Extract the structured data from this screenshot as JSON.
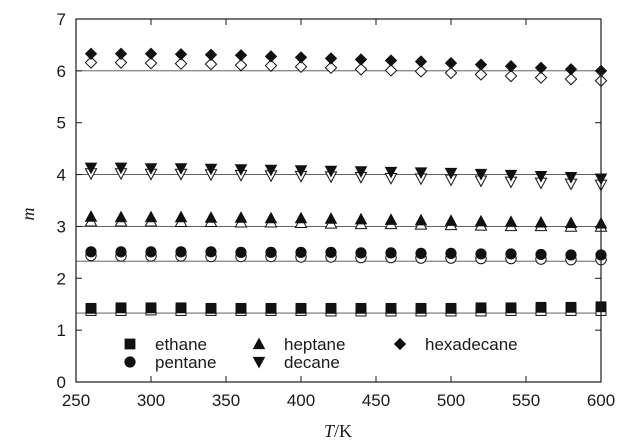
{
  "chart_data": {
    "type": "scatter",
    "xlabel_var": "T",
    "xlabel_unit": "/K",
    "ylabel": "m",
    "xlim": [
      250,
      600
    ],
    "ylim": [
      0,
      7
    ],
    "xticks": [
      "250",
      "300",
      "350",
      "400",
      "450",
      "500",
      "550",
      "600"
    ],
    "yticks": [
      "0",
      "1",
      "2",
      "3",
      "4",
      "5",
      "6",
      "7"
    ],
    "reference_lines": [
      1.33,
      2.33,
      3.0,
      4.0,
      6.0
    ],
    "x": [
      260,
      280,
      300,
      320,
      340,
      360,
      380,
      400,
      420,
      440,
      460,
      480,
      500,
      520,
      540,
      560,
      580,
      600
    ],
    "series": [
      {
        "name": "ethane",
        "marker": "square",
        "values_filled": [
          1.42,
          1.43,
          1.43,
          1.43,
          1.42,
          1.42,
          1.42,
          1.42,
          1.42,
          1.42,
          1.42,
          1.42,
          1.42,
          1.43,
          1.43,
          1.44,
          1.44,
          1.45
        ],
        "values_open": [
          1.38,
          1.38,
          1.39,
          1.38,
          1.38,
          1.38,
          1.38,
          1.38,
          1.37,
          1.37,
          1.37,
          1.37,
          1.37,
          1.37,
          1.38,
          1.38,
          1.38,
          1.38
        ]
      },
      {
        "name": "pentane",
        "marker": "circle",
        "values_filled": [
          2.51,
          2.51,
          2.51,
          2.51,
          2.51,
          2.5,
          2.5,
          2.5,
          2.5,
          2.49,
          2.49,
          2.48,
          2.48,
          2.47,
          2.47,
          2.46,
          2.45,
          2.45
        ],
        "values_open": [
          2.44,
          2.43,
          2.43,
          2.43,
          2.42,
          2.42,
          2.42,
          2.41,
          2.41,
          2.4,
          2.4,
          2.39,
          2.39,
          2.38,
          2.38,
          2.37,
          2.36,
          2.36
        ]
      },
      {
        "name": "heptane",
        "marker": "triangle-up",
        "values_filled": [
          3.19,
          3.18,
          3.18,
          3.18,
          3.17,
          3.17,
          3.16,
          3.16,
          3.15,
          3.14,
          3.13,
          3.12,
          3.11,
          3.1,
          3.09,
          3.08,
          3.07,
          3.06
        ],
        "values_open": [
          3.1,
          3.1,
          3.1,
          3.09,
          3.09,
          3.08,
          3.08,
          3.07,
          3.06,
          3.05,
          3.05,
          3.04,
          3.03,
          3.02,
          3.01,
          3.01,
          3.0,
          3.0
        ]
      },
      {
        "name": "decane",
        "marker": "triangle-down",
        "values_filled": [
          4.13,
          4.13,
          4.12,
          4.12,
          4.11,
          4.1,
          4.09,
          4.08,
          4.07,
          4.06,
          4.05,
          4.04,
          4.03,
          4.01,
          3.99,
          3.97,
          3.95,
          3.92
        ],
        "values_open": [
          4.02,
          4.02,
          4.01,
          4.01,
          4.0,
          3.99,
          3.98,
          3.97,
          3.96,
          3.95,
          3.93,
          3.92,
          3.9,
          3.88,
          3.86,
          3.84,
          3.82,
          3.8
        ]
      },
      {
        "name": "hexadecane",
        "marker": "diamond",
        "values_filled": [
          6.33,
          6.33,
          6.33,
          6.32,
          6.31,
          6.3,
          6.28,
          6.26,
          6.24,
          6.22,
          6.2,
          6.18,
          6.15,
          6.12,
          6.09,
          6.06,
          6.03,
          6.0
        ],
        "values_open": [
          6.16,
          6.16,
          6.15,
          6.14,
          6.13,
          6.11,
          6.1,
          6.08,
          6.06,
          6.03,
          6.01,
          5.99,
          5.96,
          5.93,
          5.9,
          5.87,
          5.84,
          5.81
        ]
      }
    ],
    "legend_placement": "bottom, inside plot"
  }
}
